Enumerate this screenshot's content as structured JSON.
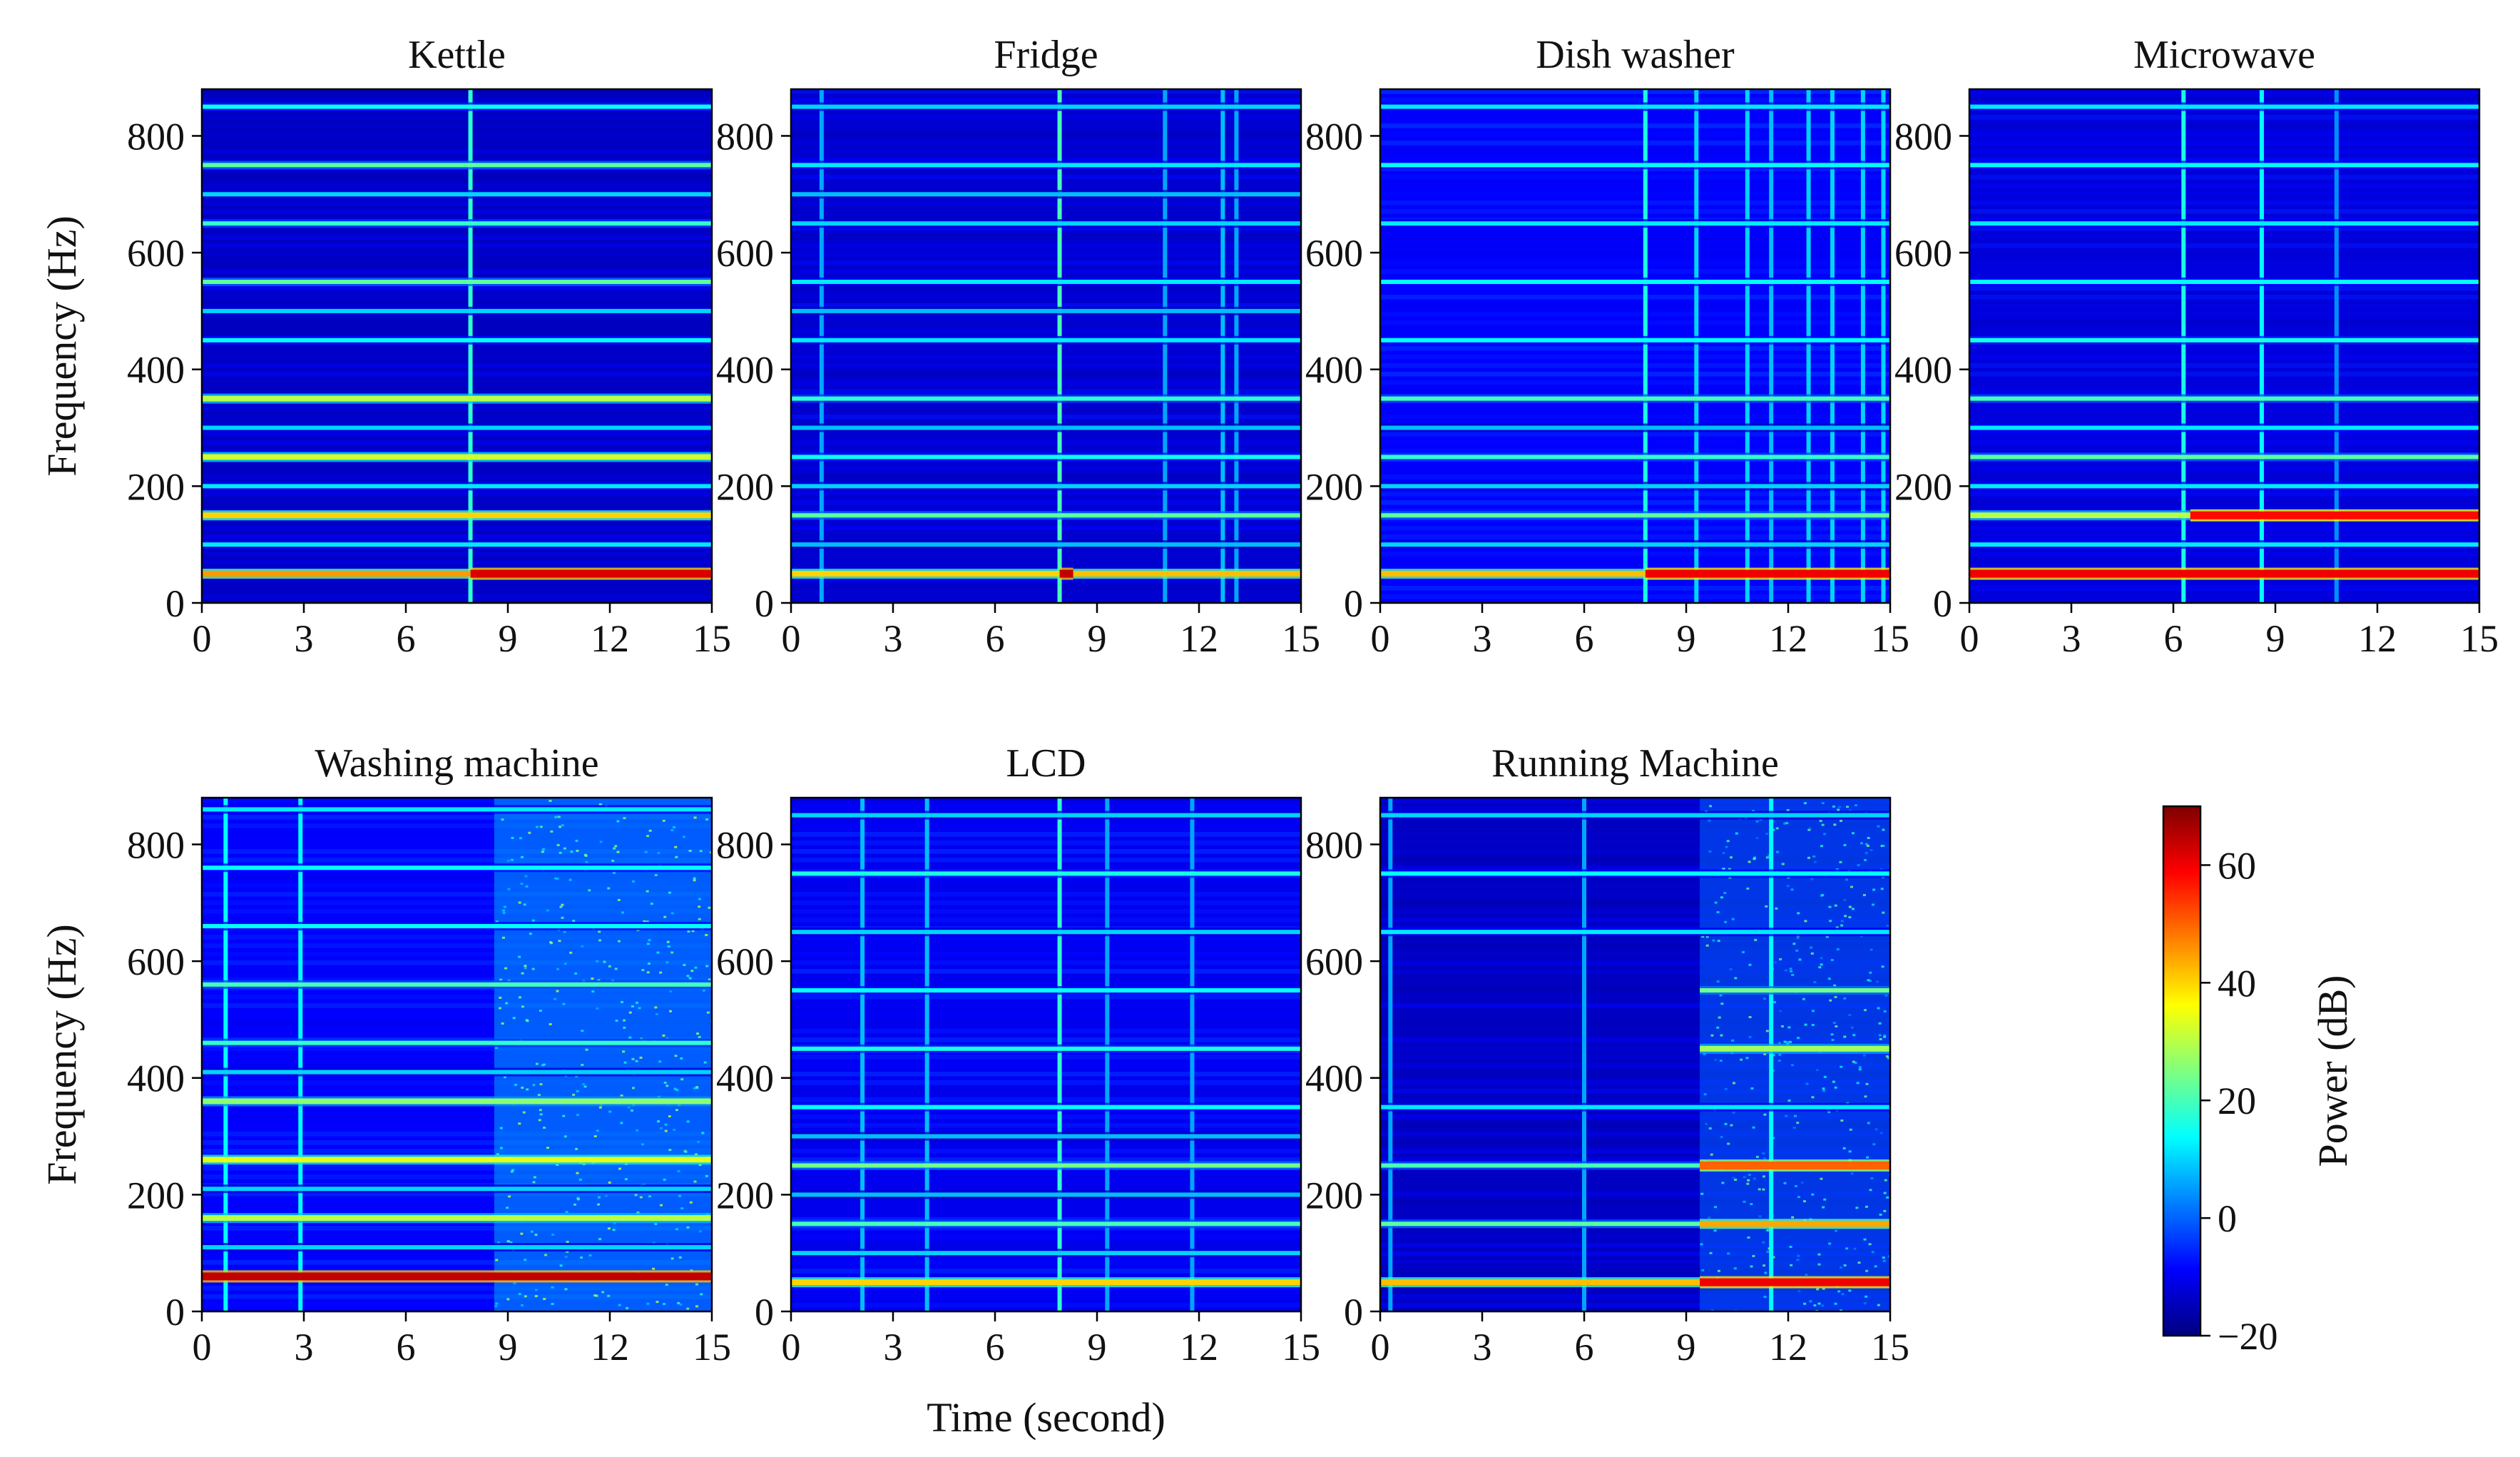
{
  "chart_data": {
    "type": "heatmap",
    "xlabel": "Time (second)",
    "ylabel": "Frequency (Hz)",
    "xlim": [
      0,
      15
    ],
    "ylim": [
      0,
      880
    ],
    "xticks": [
      0,
      3,
      6,
      9,
      12,
      15
    ],
    "yticks": [
      0,
      200,
      400,
      600,
      800
    ],
    "colorbar": {
      "label": "Power (dB)",
      "range": [
        -20,
        70
      ],
      "ticks": [
        -20,
        0,
        20,
        40,
        60
      ],
      "tick_labels": [
        "−20",
        "0",
        "20",
        "40",
        "60"
      ],
      "colormap": "jet",
      "colors": [
        "#00007f",
        "#0000ff",
        "#007fff",
        "#00ffff",
        "#7fff7f",
        "#ffff00",
        "#ff7f00",
        "#ff0000",
        "#7f0000"
      ]
    },
    "panels": [
      {
        "title": "Kettle",
        "background_db": -14,
        "harmonics": [
          {
            "freq": 50,
            "db": 62,
            "from": 7.9,
            "to": 15
          },
          {
            "freq": 50,
            "db": 45,
            "from": 0,
            "to": 7.9
          },
          {
            "freq": 150,
            "db": 40
          },
          {
            "freq": 250,
            "db": 32
          },
          {
            "freq": 350,
            "db": 30
          },
          {
            "freq": 550,
            "db": 22
          },
          {
            "freq": 650,
            "db": 18
          },
          {
            "freq": 750,
            "db": 22
          },
          {
            "freq": 850,
            "db": 15
          },
          {
            "freq": 100,
            "db": 12
          },
          {
            "freq": 200,
            "db": 12
          },
          {
            "freq": 300,
            "db": 10
          },
          {
            "freq": 450,
            "db": 14
          },
          {
            "freq": 500,
            "db": 10
          },
          {
            "freq": 700,
            "db": 10
          }
        ],
        "events": [
          {
            "time": 7.9,
            "db": 18
          }
        ]
      },
      {
        "title": "Fridge",
        "background_db": -13,
        "harmonics": [
          {
            "freq": 50,
            "db": 40,
            "from": 0,
            "to": 7.9
          },
          {
            "freq": 50,
            "db": 64,
            "from": 7.9,
            "to": 8.3
          },
          {
            "freq": 50,
            "db": 42,
            "from": 8.3,
            "to": 15
          },
          {
            "freq": 150,
            "db": 22
          },
          {
            "freq": 250,
            "db": 15
          },
          {
            "freq": 350,
            "db": 18
          },
          {
            "freq": 450,
            "db": 12
          },
          {
            "freq": 550,
            "db": 12
          },
          {
            "freq": 650,
            "db": 10
          },
          {
            "freq": 750,
            "db": 12
          },
          {
            "freq": 850,
            "db": 10
          },
          {
            "freq": 100,
            "db": 8
          },
          {
            "freq": 200,
            "db": 10
          },
          {
            "freq": 300,
            "db": 8
          },
          {
            "freq": 500,
            "db": 8
          },
          {
            "freq": 700,
            "db": 8
          }
        ],
        "events": [
          {
            "time": 7.9,
            "db": 20
          },
          {
            "time": 0.9,
            "db": 6
          },
          {
            "time": 11.0,
            "db": 6
          },
          {
            "time": 12.7,
            "db": 8
          },
          {
            "time": 13.1,
            "db": 6
          }
        ]
      },
      {
        "title": "Dish washer",
        "background_db": -9,
        "harmonics": [
          {
            "freq": 50,
            "db": 42,
            "from": 0,
            "to": 7.8
          },
          {
            "freq": 50,
            "db": 60,
            "from": 7.8,
            "to": 15
          },
          {
            "freq": 150,
            "db": 22
          },
          {
            "freq": 250,
            "db": 18
          },
          {
            "freq": 350,
            "db": 20
          },
          {
            "freq": 450,
            "db": 14
          },
          {
            "freq": 550,
            "db": 14
          },
          {
            "freq": 650,
            "db": 12
          },
          {
            "freq": 750,
            "db": 14
          },
          {
            "freq": 850,
            "db": 12
          },
          {
            "freq": 100,
            "db": 10
          },
          {
            "freq": 200,
            "db": 10
          },
          {
            "freq": 300,
            "db": 8
          }
        ],
        "events": [
          {
            "time": 7.8,
            "db": 16
          },
          {
            "time": 9.3,
            "db": 10
          },
          {
            "time": 10.8,
            "db": 10
          },
          {
            "time": 11.5,
            "db": 8
          },
          {
            "time": 12.6,
            "db": 10
          },
          {
            "time": 13.3,
            "db": 10
          },
          {
            "time": 14.2,
            "db": 10
          },
          {
            "time": 14.8,
            "db": 10
          }
        ]
      },
      {
        "title": "Microwave",
        "background_db": -12,
        "harmonics": [
          {
            "freq": 50,
            "db": 60
          },
          {
            "freq": 150,
            "db": 30,
            "from": 0,
            "to": 6.5
          },
          {
            "freq": 150,
            "db": 58,
            "from": 6.5,
            "to": 15
          },
          {
            "freq": 100,
            "db": 12
          },
          {
            "freq": 200,
            "db": 12
          },
          {
            "freq": 250,
            "db": 22
          },
          {
            "freq": 300,
            "db": 12
          },
          {
            "freq": 350,
            "db": 20
          },
          {
            "freq": 450,
            "db": 16
          },
          {
            "freq": 550,
            "db": 14
          },
          {
            "freq": 650,
            "db": 12
          },
          {
            "freq": 750,
            "db": 14
          },
          {
            "freq": 850,
            "db": 12
          }
        ],
        "events": [
          {
            "time": 6.3,
            "db": 16
          },
          {
            "time": 8.6,
            "db": 14
          },
          {
            "time": 10.8,
            "db": 4
          }
        ]
      },
      {
        "title": "Washing machine",
        "background_db": -9,
        "harmonics": [
          {
            "freq": 60,
            "db": 64
          },
          {
            "freq": 160,
            "db": 30
          },
          {
            "freq": 260,
            "db": 34
          },
          {
            "freq": 360,
            "db": 26
          },
          {
            "freq": 460,
            "db": 18
          },
          {
            "freq": 560,
            "db": 20
          },
          {
            "freq": 660,
            "db": 14
          },
          {
            "freq": 760,
            "db": 14
          },
          {
            "freq": 860,
            "db": 12
          },
          {
            "freq": 110,
            "db": 10
          },
          {
            "freq": 210,
            "db": 10
          },
          {
            "freq": 410,
            "db": 10
          }
        ],
        "events": [
          {
            "time": 0.7,
            "db": 14
          },
          {
            "time": 2.9,
            "db": 14
          }
        ],
        "noise_region": {
          "from": 8.6,
          "to": 15,
          "db": 6
        }
      },
      {
        "title": "LCD",
        "background_db": -10,
        "harmonics": [
          {
            "freq": 50,
            "db": 40
          },
          {
            "freq": 150,
            "db": 20
          },
          {
            "freq": 250,
            "db": 24
          },
          {
            "freq": 350,
            "db": 14
          },
          {
            "freq": 450,
            "db": 16
          },
          {
            "freq": 550,
            "db": 14
          },
          {
            "freq": 650,
            "db": 10
          },
          {
            "freq": 750,
            "db": 16
          },
          {
            "freq": 850,
            "db": 10
          },
          {
            "freq": 100,
            "db": 10
          },
          {
            "freq": 200,
            "db": 8
          },
          {
            "freq": 300,
            "db": 8
          }
        ],
        "events": [
          {
            "time": 7.9,
            "db": 18
          },
          {
            "time": 2.1,
            "db": 8
          },
          {
            "time": 4.0,
            "db": 8
          },
          {
            "time": 9.3,
            "db": 6
          },
          {
            "time": 11.8,
            "db": 6
          }
        ]
      },
      {
        "title": "Running Machine",
        "background_db": -14,
        "harmonics": [
          {
            "freq": 50,
            "db": 42,
            "from": 0,
            "to": 9.4
          },
          {
            "freq": 50,
            "db": 60,
            "from": 9.4,
            "to": 15
          },
          {
            "freq": 150,
            "db": 22,
            "from": 0,
            "to": 9.4
          },
          {
            "freq": 150,
            "db": 44,
            "from": 9.4,
            "to": 15
          },
          {
            "freq": 250,
            "db": 20,
            "from": 0,
            "to": 9.4
          },
          {
            "freq": 250,
            "db": 50,
            "from": 9.4,
            "to": 15
          },
          {
            "freq": 350,
            "db": 12
          },
          {
            "freq": 450,
            "db": 28,
            "from": 9.4,
            "to": 15
          },
          {
            "freq": 550,
            "db": 24,
            "from": 9.4,
            "to": 15
          },
          {
            "freq": 650,
            "db": 12
          },
          {
            "freq": 750,
            "db": 14
          },
          {
            "freq": 850,
            "db": 10
          }
        ],
        "events": [
          {
            "time": 11.5,
            "db": 14
          },
          {
            "time": 0.3,
            "db": 6
          },
          {
            "time": 6.0,
            "db": 6
          }
        ],
        "noise_region": {
          "from": 9.4,
          "to": 15,
          "db": 0
        }
      }
    ]
  }
}
